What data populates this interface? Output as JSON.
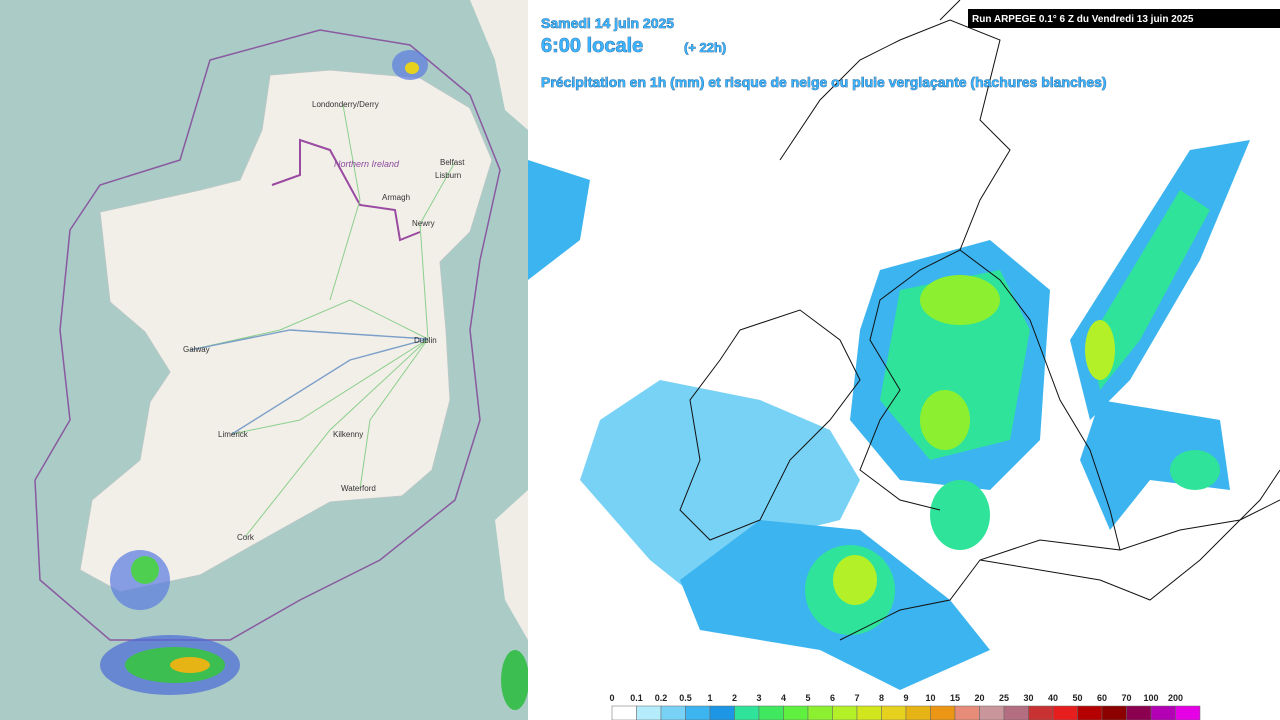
{
  "left_map": {
    "places": [
      "Londonderry/Derry",
      "Northern Ireland",
      "Belfast",
      "Lisburn",
      "Armagh",
      "Newry",
      "Dublin",
      "Galway",
      "Limerick",
      "Kilkenny",
      "Waterford",
      "Cork"
    ]
  },
  "right_map": {
    "date": "Samedi 14 juin 2025",
    "time": "6:00 locale",
    "lead": "(+ 22h)",
    "subtitle": "Précipitation en 1h (mm) et risque de neige ou pluie verglaçante (hachures blanches)",
    "run": "Run ARPEGE 0.1° 6 Z du Vendredi 13 juin 2025",
    "legend": {
      "labels": [
        "0",
        "0.1",
        "0.2",
        "0.5",
        "1",
        "2",
        "3",
        "4",
        "5",
        "6",
        "7",
        "8",
        "9",
        "10",
        "15",
        "20",
        "25",
        "30",
        "40",
        "50",
        "60",
        "70",
        "100",
        "200"
      ],
      "colors": [
        "#ffffff",
        "#b4ecfb",
        "#78d2f5",
        "#3cb4ef",
        "#1e96e6",
        "#30e39a",
        "#40e860",
        "#60f040",
        "#8cf030",
        "#b4f028",
        "#d2e61e",
        "#e6d21e",
        "#e6b414",
        "#eb9614",
        "#e68c78",
        "#c8969b",
        "#b46e82",
        "#c83232",
        "#e61e1e",
        "#b40000",
        "#8c0000",
        "#8c0050",
        "#b400b4",
        "#e600e6"
      ]
    }
  }
}
